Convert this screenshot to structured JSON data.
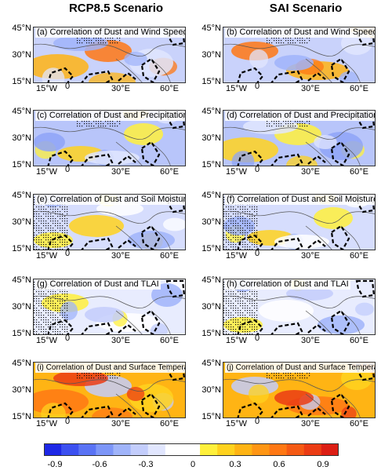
{
  "columns": {
    "left_title": "RCP8.5 Scenario",
    "right_title": "SAI Scenario"
  },
  "panels": [
    {
      "label": "(a) Correlation of Dust and Wind Speed",
      "scenario": "rcp",
      "variable": "wind"
    },
    {
      "label": "(b) Correlation of Dust and Wind Speed",
      "scenario": "sai",
      "variable": "wind"
    },
    {
      "label": "(c) Correlation of Dust and Precipitation",
      "scenario": "rcp",
      "variable": "precip"
    },
    {
      "label": "(d) Correlation of Dust and Precipitation",
      "scenario": "sai",
      "variable": "precip"
    },
    {
      "label": "(e) Correlation of Dust and Soil Moisture",
      "scenario": "rcp",
      "variable": "soil"
    },
    {
      "label": "(f) Correlation of Dust and Soil Moisture",
      "scenario": "sai",
      "variable": "soil"
    },
    {
      "label": "(g) Correlation of Dust and TLAI",
      "scenario": "rcp",
      "variable": "tlai"
    },
    {
      "label": "(h) Correlation of Dust and TLAI",
      "scenario": "sai",
      "variable": "tlai"
    },
    {
      "label": "(i) Correlation of Dust and Surface Temperature",
      "scenario": "rcp",
      "variable": "temp"
    },
    {
      "label": "(j) Correlation of Dust and Surface Temperature",
      "scenario": "sai",
      "variable": "temp"
    }
  ],
  "lat_ticks": [
    "45°N",
    "30°N",
    "15°N"
  ],
  "lon_ticks": [
    "15°W",
    "0",
    "30°E",
    "60°E"
  ],
  "colorbar": {
    "ticks": [
      "-0.9",
      "-0.6",
      "-0.3",
      "0",
      "0.3",
      "0.6",
      "0.9"
    ],
    "colors": [
      "#1e28e6",
      "#3c50f0",
      "#5a73f5",
      "#7d96f8",
      "#a0b4fa",
      "#c3cdfc",
      "#e1e6fe",
      "#ffffff",
      "#ffffff",
      "#fff03c",
      "#ffd21e",
      "#ffb414",
      "#ff9614",
      "#ff7814",
      "#f55a14",
      "#eb3c14",
      "#dc1e14"
    ]
  }
}
